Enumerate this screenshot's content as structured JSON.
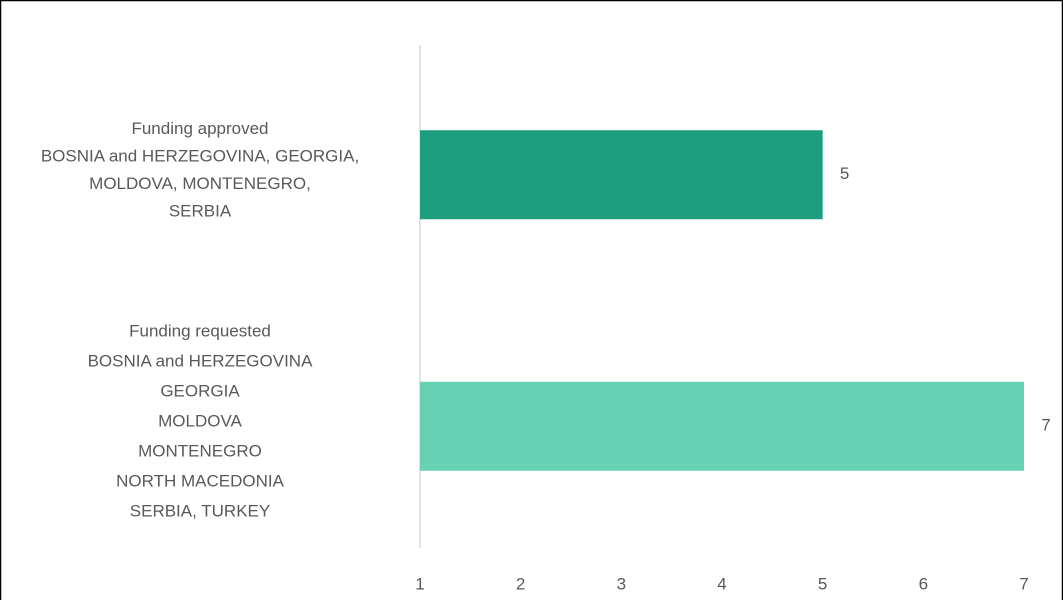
{
  "chart_data": {
    "type": "hbar",
    "categories": [
      [
        "Funding approved",
        "BOSNIA and HERZEGOVINA, GEORGIA,",
        "MOLDOVA, MONTENEGRO,",
        "SERBIA"
      ],
      [
        "Funding requested",
        "BOSNIA and HERZEGOVINA",
        "GEORGIA",
        "MOLDOVA",
        "MONTENEGRO",
        "NORTH MACEDONIA",
        "SERBIA,  TURKEY"
      ]
    ],
    "values": [
      5,
      7
    ],
    "colors": [
      "#1d9e7f",
      "#66d1b3"
    ],
    "xlim": [
      1,
      7
    ],
    "xticks": [
      1,
      2,
      3,
      4,
      5,
      6,
      7
    ]
  }
}
